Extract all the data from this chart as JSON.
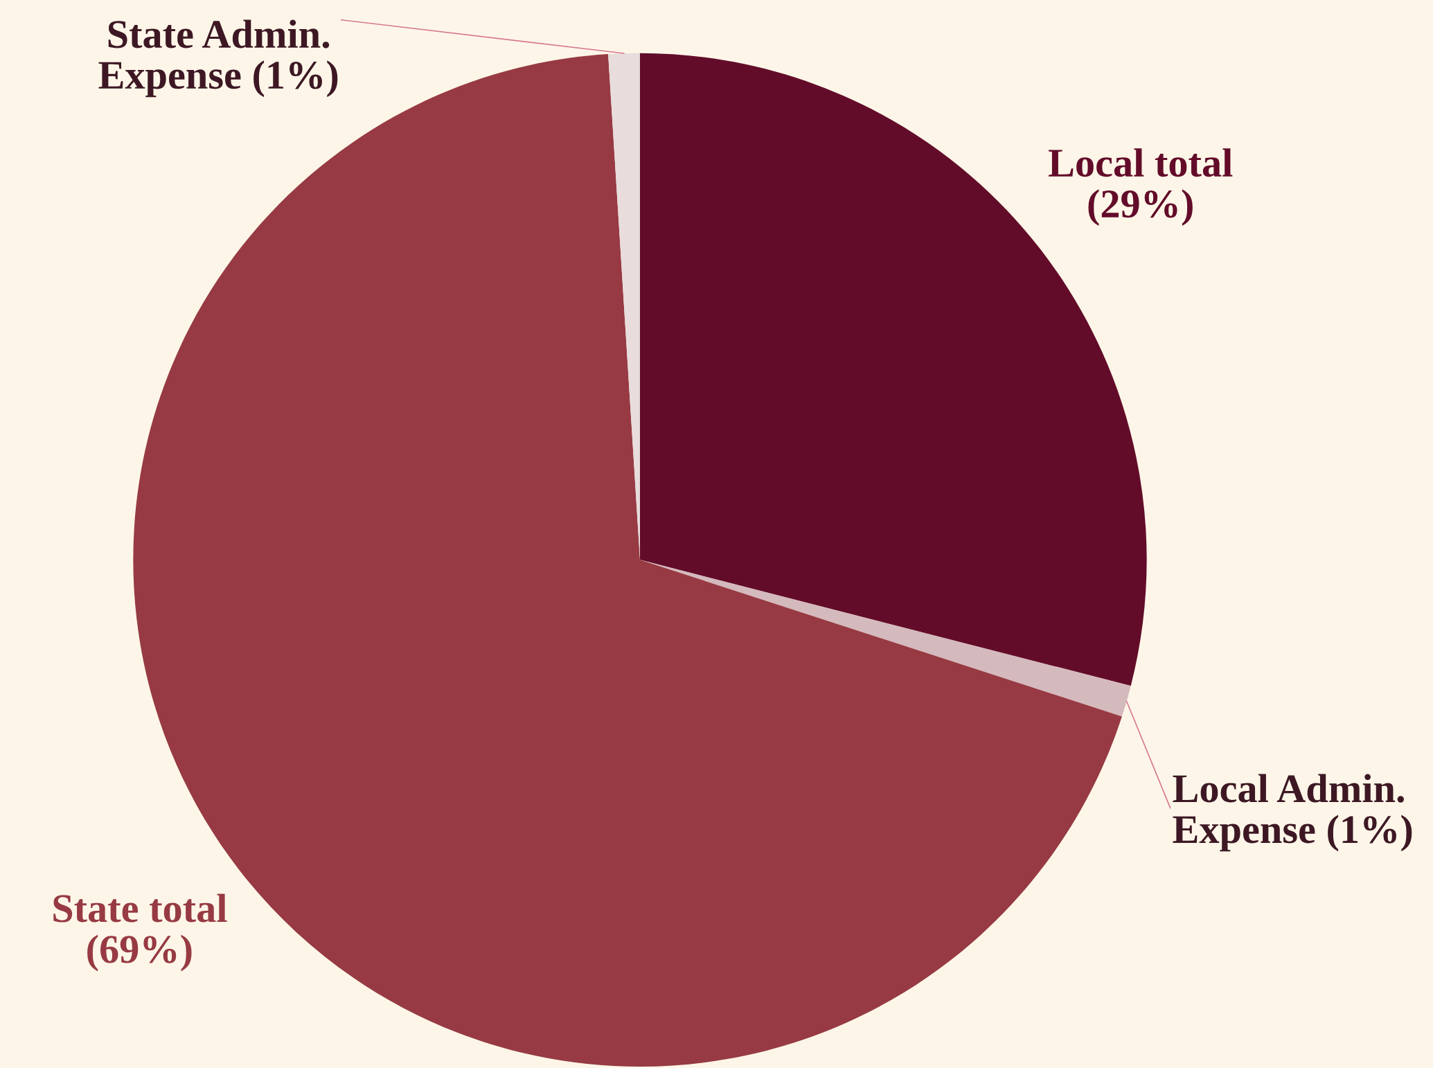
{
  "chart_data": {
    "type": "pie",
    "categories": [
      "Local total",
      "Local Admin. Expense",
      "State total",
      "State Admin. Expense"
    ],
    "values": [
      29,
      1,
      69,
      1
    ],
    "value_labels": [
      "(29%)",
      "(1%)",
      "(69%)",
      "(1%)"
    ],
    "colors": [
      "#630c2a",
      "#d4b9bd",
      "#973a43",
      "#e8dcdc"
    ]
  }
}
